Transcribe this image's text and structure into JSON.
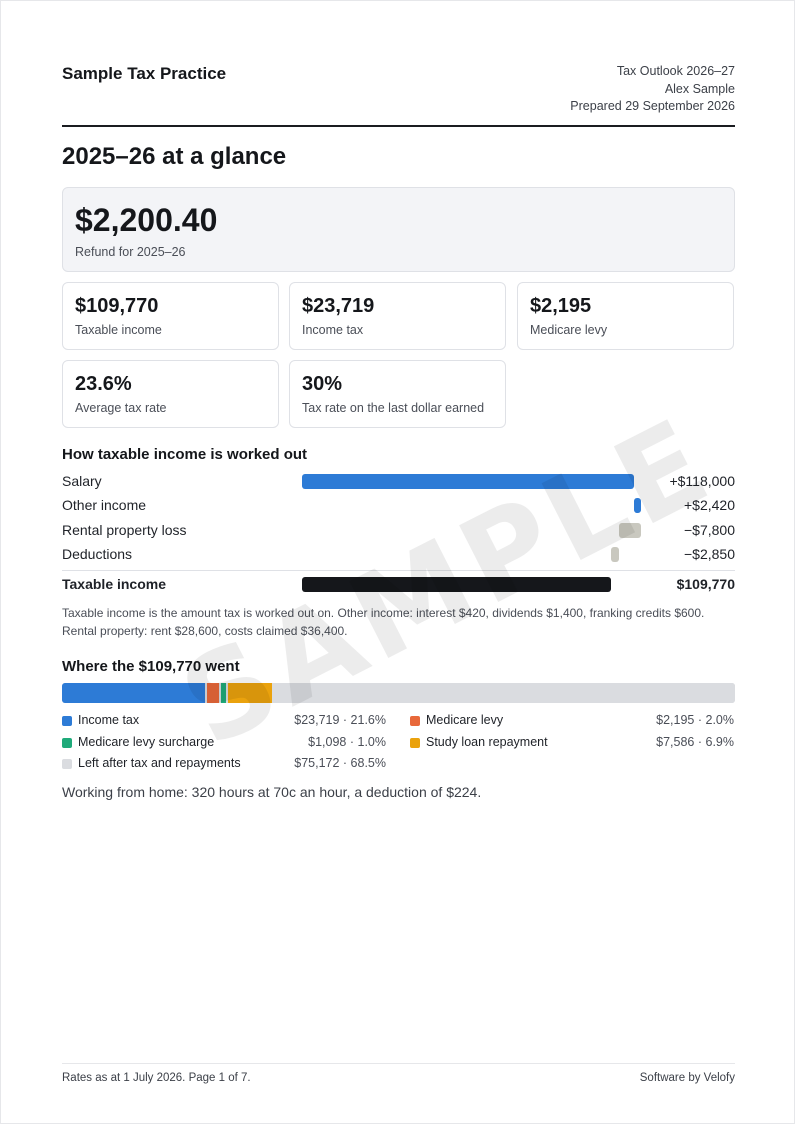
{
  "header": {
    "firm_name": "Sample Tax Practice",
    "report_title": "Tax Outlook 2026–27",
    "client_name": "Alex Sample",
    "prepared": "Prepared 29 September 2026"
  },
  "section_title": "2025–26 at a glance",
  "refund": {
    "amount": "$2,200.40",
    "label": "Refund for 2025–26"
  },
  "cards": [
    {
      "value": "$109,770",
      "label": "Taxable income"
    },
    {
      "value": "$23,719",
      "label": "Income tax"
    },
    {
      "value": "$2,195",
      "label": "Medicare levy"
    },
    {
      "value": "23.6%",
      "label": "Average tax rate"
    },
    {
      "value": "30%",
      "label": "Tax rate on the last dollar earned"
    }
  ],
  "waterfall": {
    "title": "How taxable income is worked out",
    "rows": [
      {
        "label": "Salary",
        "amount": "+$118,000",
        "value": 118000,
        "color": "#2d7bd6"
      },
      {
        "label": "Other income",
        "amount": "+$2,420",
        "value": 2420,
        "color": "#2d7bd6"
      },
      {
        "label": "Rental property loss",
        "amount": "−$7,800",
        "value": -7800,
        "color": "#c9c8bf"
      },
      {
        "label": "Deductions",
        "amount": "−$2,850",
        "value": -2850,
        "color": "#c9c8bf"
      }
    ],
    "total": {
      "label": "Taxable income",
      "amount": "$109,770",
      "value": 109770,
      "color": "#15171b"
    },
    "note": "Taxable income is the amount tax is worked out on. Other income: interest $420, dividends $1,400, franking credits $600. Rental property: rent $28,600, costs claimed $36,400."
  },
  "where": {
    "title": "Where the $109,770 went",
    "segments": [
      {
        "label": "Income tax",
        "value_text": "$23,719 · 21.6%",
        "pct": 21.6,
        "color": "#2d7bd6"
      },
      {
        "label": "Medicare levy",
        "value_text": "$2,195 · 2.0%",
        "pct": 2.0,
        "color": "#e8683a"
      },
      {
        "label": "Medicare levy surcharge",
        "value_text": "$1,098 · 1.0%",
        "pct": 1.0,
        "color": "#1faa7a"
      },
      {
        "label": "Study loan repayment",
        "value_text": "$7,586 · 6.9%",
        "pct": 6.9,
        "color": "#eaa20d"
      },
      {
        "label": "Left after tax and repayments",
        "value_text": "$75,172 · 68.5%",
        "pct": 68.5,
        "color": "#dadce0"
      }
    ]
  },
  "wfh_note": "Working from home: 320 hours at 70c an hour, a deduction of $224.",
  "footer": {
    "left": "Rates as at 1 July 2026. Page 1 of 7.",
    "right": "Software by Velofy"
  },
  "watermark": "SAMPLE"
}
